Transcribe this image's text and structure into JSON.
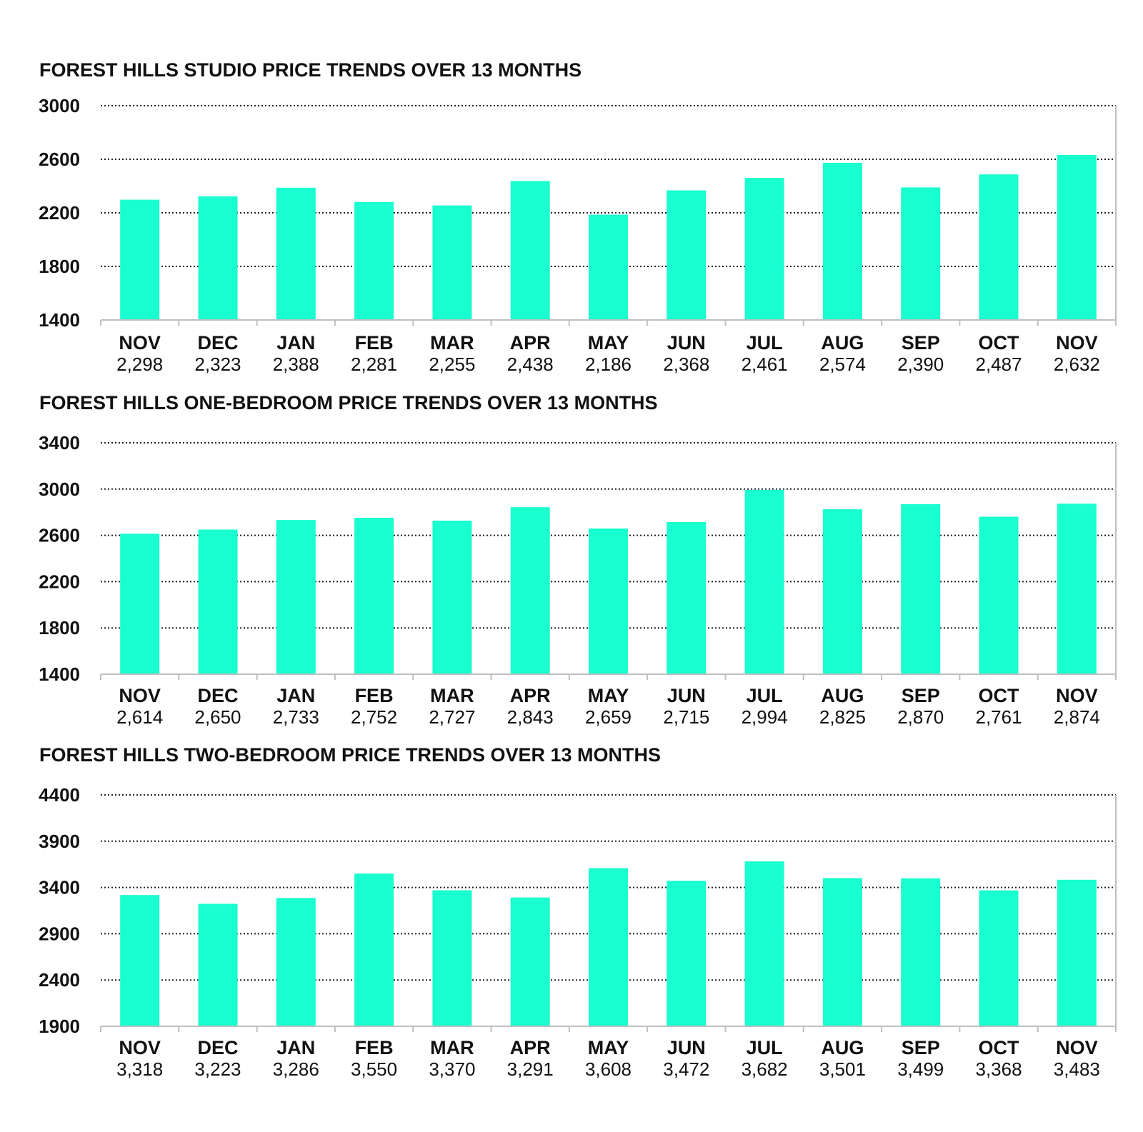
{
  "colors": {
    "bar": "#19ffcf",
    "text": "#111111",
    "grid": "#222222",
    "axis": "#bfbfbf"
  },
  "chart_data": [
    {
      "type": "bar",
      "title": "FOREST HILLS STUDIO PRICE TRENDS OVER 13 MONTHS",
      "categories": [
        "NOV",
        "DEC",
        "JAN",
        "FEB",
        "MAR",
        "APR",
        "MAY",
        "JUN",
        "JUL",
        "AUG",
        "SEP",
        "OCT",
        "NOV"
      ],
      "values": [
        2298,
        2323,
        2388,
        2281,
        2255,
        2438,
        2186,
        2368,
        2461,
        2574,
        2390,
        2487,
        2632
      ],
      "value_labels": [
        "2,298",
        "2,323",
        "2,388",
        "2,281",
        "2,255",
        "2,438",
        "2,186",
        "2,368",
        "2,461",
        "2,574",
        "2,390",
        "2,487",
        "2,632"
      ],
      "ylim": [
        1400,
        3000
      ],
      "yticks": [
        1400,
        1800,
        2200,
        2600,
        3000
      ],
      "grid": true
    },
    {
      "type": "bar",
      "title": "FOREST HILLS ONE-BEDROOM PRICE TRENDS OVER 13 MONTHS",
      "categories": [
        "NOV",
        "DEC",
        "JAN",
        "FEB",
        "MAR",
        "APR",
        "MAY",
        "JUN",
        "JUL",
        "AUG",
        "SEP",
        "OCT",
        "NOV"
      ],
      "values": [
        2614,
        2650,
        2733,
        2752,
        2727,
        2843,
        2659,
        2715,
        2994,
        2825,
        2870,
        2761,
        2874
      ],
      "value_labels": [
        "2,614",
        "2,650",
        "2,733",
        "2,752",
        "2,727",
        "2,843",
        "2,659",
        "2,715",
        "2,994",
        "2,825",
        "2,870",
        "2,761",
        "2,874"
      ],
      "ylim": [
        1400,
        3400
      ],
      "yticks": [
        1400,
        1800,
        2200,
        2600,
        3000,
        3400
      ],
      "grid": true
    },
    {
      "type": "bar",
      "title": "FOREST HILLS TWO-BEDROOM PRICE TRENDS OVER 13 MONTHS",
      "categories": [
        "NOV",
        "DEC",
        "JAN",
        "FEB",
        "MAR",
        "APR",
        "MAY",
        "JUN",
        "JUL",
        "AUG",
        "SEP",
        "OCT",
        "NOV"
      ],
      "values": [
        3318,
        3223,
        3286,
        3550,
        3370,
        3291,
        3608,
        3472,
        3682,
        3501,
        3499,
        3368,
        3483
      ],
      "value_labels": [
        "3,318",
        "3,223",
        "3,286",
        "3,550",
        "3,370",
        "3,291",
        "3,608",
        "3,472",
        "3,682",
        "3,501",
        "3,499",
        "3,368",
        "3,483"
      ],
      "ylim": [
        1900,
        4400
      ],
      "yticks": [
        1900,
        2400,
        2900,
        3400,
        3900,
        4400
      ],
      "grid": true
    }
  ]
}
